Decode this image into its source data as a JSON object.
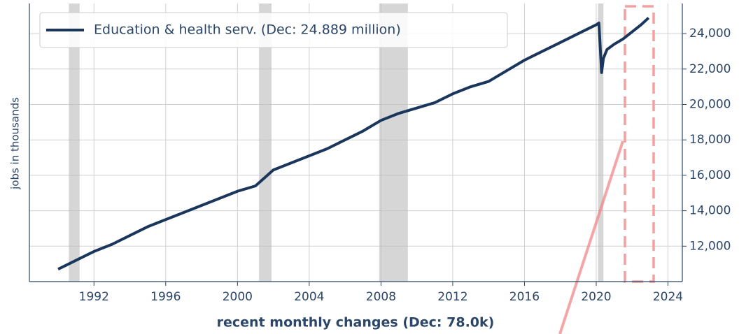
{
  "chart_data": {
    "type": "line",
    "x_axis_label": "recent monthly changes (Dec: 78.0k)",
    "y_axis_label": "jobs in thousands",
    "x": [
      1990,
      1991,
      1992,
      1993,
      1994,
      1995,
      1996,
      1997,
      1998,
      1999,
      2000,
      2001,
      2002,
      2003,
      2004,
      2005,
      2006,
      2007,
      2008,
      2009,
      2010,
      2011,
      2012,
      2013,
      2014,
      2015,
      2016,
      2017,
      2018,
      2019,
      2020.0,
      2020.15,
      2020.3,
      2020.4,
      2020.6,
      2021.0,
      2021.5,
      2022.0,
      2022.5,
      2022.92
    ],
    "series": [
      {
        "name": "Education & health serv. (Dec: 24.889 million)",
        "color": "#1b365d",
        "values": [
          10700,
          11200,
          11700,
          12100,
          12600,
          13100,
          13500,
          13900,
          14300,
          14700,
          15100,
          15400,
          16300,
          16700,
          17100,
          17500,
          18000,
          18500,
          19100,
          19500,
          19800,
          20100,
          20600,
          21000,
          21300,
          21900,
          22500,
          23000,
          23500,
          24000,
          24500,
          24600,
          21800,
          22600,
          23100,
          23400,
          23700,
          24100,
          24500,
          24889
        ]
      }
    ],
    "recessions": [
      [
        1990.6,
        1991.2
      ],
      [
        2001.2,
        2001.9
      ],
      [
        2007.9,
        2009.5
      ],
      [
        2020.1,
        2020.4
      ]
    ],
    "highlight": [
      2021.6,
      2023.2
    ],
    "xlim": [
      1988.4,
      2024.8
    ],
    "ylim": [
      10000,
      25700
    ],
    "xticks": [
      1992,
      1996,
      2000,
      2004,
      2008,
      2012,
      2016,
      2020,
      2024
    ],
    "yticks": [
      {
        "value": 12000,
        "label": "12,000"
      },
      {
        "value": 14000,
        "label": "14,000"
      },
      {
        "value": 16000,
        "label": "16,000"
      },
      {
        "value": 18000,
        "label": "18,000"
      },
      {
        "value": 20000,
        "label": "20,000"
      },
      {
        "value": 22000,
        "label": "22,000"
      },
      {
        "value": 24000,
        "label": "24,000"
      }
    ],
    "grid": true
  }
}
